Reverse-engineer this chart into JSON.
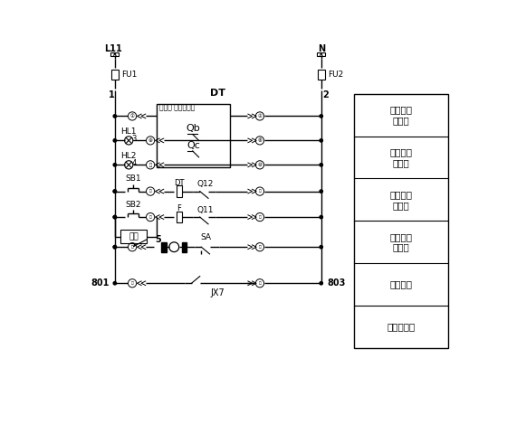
{
  "bg_color": "#ffffff",
  "line_color": "#000000",
  "fig_width": 5.6,
  "fig_height": 4.8,
  "dpi": 100,
  "legend_labels": [
    "合闸指示\n（红）",
    "分闸指示\n（绿）",
    "电动合闸\n（红）",
    "电动分闸\n（绿）",
    "电动储能",
    "至负控信号"
  ],
  "L11": "L11",
  "N": "N",
  "FU1": "FU1",
  "FU2": "FU2",
  "DT_top": "DT",
  "node1": "1",
  "node2": "2",
  "HL1": "HL1",
  "HL2": "HL2",
  "SB1": "SB1",
  "SB2": "SB2",
  "cika": "磁卡",
  "DT2": "DT",
  "F": "F",
  "Q12": "Q12",
  "Q11": "Q11",
  "num5": "5",
  "SA": "SA",
  "n801": "801",
  "n803": "803",
  "JX7": "JX7",
  "Qb": "Qb",
  "Qc": "Qc",
  "intelli": "智能型 电子脱扣器"
}
